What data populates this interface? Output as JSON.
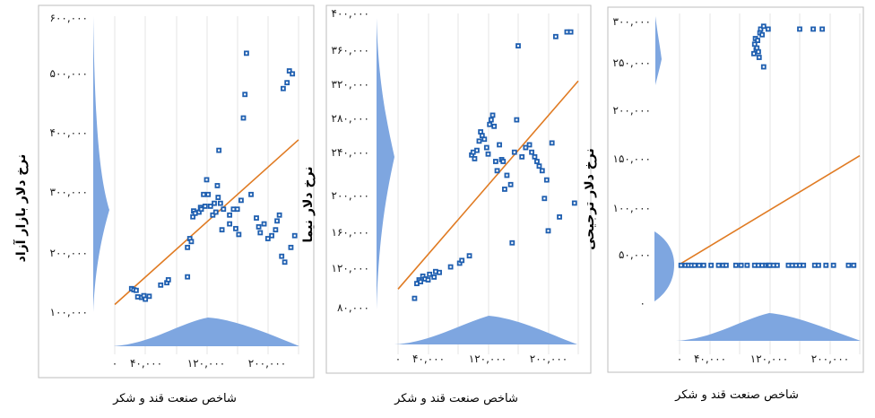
{
  "chart_data": [
    {
      "type": "scatter",
      "ylabel": "نرخ دلار بازار آزاد",
      "xlabel": "شاخص صنعت قند و شکر",
      "xlim": [
        0,
        240000
      ],
      "ylim": [
        100000,
        600000
      ],
      "x_ticks": [
        "۰",
        "۴۰,۰۰۰",
        "۱۲۰,۰۰۰",
        "۲۰۰,۰۰۰"
      ],
      "y_ticks": [
        "۱۰۰,۰۰۰",
        "۲۰۰,۰۰۰",
        "۳۰۰,۰۰۰",
        "۴۰۰,۰۰۰",
        "۵۰۰,۰۰۰",
        "۶۰۰,۰۰۰"
      ],
      "trend": [
        [
          0,
          113000
        ],
        [
          240000,
          393000
        ]
      ],
      "points": [
        [
          22000,
          140000
        ],
        [
          25000,
          138000
        ],
        [
          28000,
          137000
        ],
        [
          30000,
          126000
        ],
        [
          35000,
          125000
        ],
        [
          38000,
          128000
        ],
        [
          40000,
          122000
        ],
        [
          45000,
          127000
        ],
        [
          60000,
          146000
        ],
        [
          68000,
          150000
        ],
        [
          70000,
          155000
        ],
        [
          95000,
          160000
        ],
        [
          95000,
          210000
        ],
        [
          98000,
          225000
        ],
        [
          100000,
          220000
        ],
        [
          102000,
          262000
        ],
        [
          103000,
          272000
        ],
        [
          105000,
          268000
        ],
        [
          110000,
          270000
        ],
        [
          112000,
          278000
        ],
        [
          113000,
          275000
        ],
        [
          116000,
          300000
        ],
        [
          118000,
          280000
        ],
        [
          120000,
          325000
        ],
        [
          122000,
          300000
        ],
        [
          125000,
          280000
        ],
        [
          128000,
          265000
        ],
        [
          130000,
          285000
        ],
        [
          132000,
          270000
        ],
        [
          134000,
          315000
        ],
        [
          135000,
          295000
        ],
        [
          136000,
          375000
        ],
        [
          138000,
          285000
        ],
        [
          140000,
          240000
        ],
        [
          142000,
          275000
        ],
        [
          150000,
          250000
        ],
        [
          150000,
          265000
        ],
        [
          155000,
          275000
        ],
        [
          158000,
          242000
        ],
        [
          160000,
          275000
        ],
        [
          162000,
          232000
        ],
        [
          165000,
          290000
        ],
        [
          168000,
          430000
        ],
        [
          170000,
          470000
        ],
        [
          172000,
          540000
        ],
        [
          178000,
          300000
        ],
        [
          185000,
          260000
        ],
        [
          188000,
          245000
        ],
        [
          190000,
          235000
        ],
        [
          195000,
          250000
        ],
        [
          200000,
          225000
        ],
        [
          205000,
          230000
        ],
        [
          210000,
          240000
        ],
        [
          212000,
          255000
        ],
        [
          215000,
          265000
        ],
        [
          218000,
          195000
        ],
        [
          220000,
          480000
        ],
        [
          222000,
          185000
        ],
        [
          225000,
          490000
        ],
        [
          228000,
          510000
        ],
        [
          230000,
          210000
        ],
        [
          232000,
          505000
        ],
        [
          235000,
          230000
        ]
      ]
    },
    {
      "type": "scatter",
      "ylabel": "نرخ دلار نیما",
      "xlabel": "شاخص صنعت قند و شکر",
      "xlim": [
        0,
        240000
      ],
      "ylim": [
        80000,
        400000
      ],
      "x_ticks": [
        "۰",
        "۴۰,۰۰۰",
        "۱۲۰,۰۰۰",
        "۲۰۰,۰۰۰"
      ],
      "y_ticks": [
        "۸۰,۰۰۰",
        "۱۲۰,۰۰۰",
        "۱۶۰,۰۰۰",
        "۲۰۰,۰۰۰",
        "۲۴۰,۰۰۰",
        "۲۸۰,۰۰۰",
        "۳۲۰,۰۰۰",
        "۳۶۰,۰۰۰",
        "۴۰۰,۰۰۰"
      ],
      "trend": [
        [
          0,
          102000
        ],
        [
          240000,
          327000
        ]
      ],
      "points": [
        [
          22000,
          92000
        ],
        [
          25000,
          108000
        ],
        [
          28000,
          112000
        ],
        [
          30000,
          110000
        ],
        [
          33000,
          116000
        ],
        [
          36000,
          113000
        ],
        [
          40000,
          112000
        ],
        [
          42000,
          118000
        ],
        [
          48000,
          115000
        ],
        [
          50000,
          121000
        ],
        [
          55000,
          120000
        ],
        [
          70000,
          126000
        ],
        [
          82000,
          130000
        ],
        [
          85000,
          133000
        ],
        [
          95000,
          138000
        ],
        [
          98000,
          247000
        ],
        [
          100000,
          250000
        ],
        [
          102000,
          243000
        ],
        [
          105000,
          252000
        ],
        [
          108000,
          262000
        ],
        [
          110000,
          272000
        ],
        [
          112000,
          268000
        ],
        [
          115000,
          264000
        ],
        [
          118000,
          255000
        ],
        [
          120000,
          248000
        ],
        [
          122000,
          280000
        ],
        [
          124000,
          285000
        ],
        [
          126000,
          290000
        ],
        [
          128000,
          278000
        ],
        [
          130000,
          240000
        ],
        [
          132000,
          230000
        ],
        [
          135000,
          258000
        ],
        [
          138000,
          242000
        ],
        [
          140000,
          240000
        ],
        [
          142000,
          210000
        ],
        [
          145000,
          225000
        ],
        [
          150000,
          215000
        ],
        [
          152000,
          152000
        ],
        [
          155000,
          250000
        ],
        [
          158000,
          285000
        ],
        [
          160000,
          365000
        ],
        [
          165000,
          245000
        ],
        [
          170000,
          255000
        ],
        [
          175000,
          258000
        ],
        [
          178000,
          250000
        ],
        [
          182000,
          245000
        ],
        [
          185000,
          240000
        ],
        [
          188000,
          235000
        ],
        [
          192000,
          230000
        ],
        [
          195000,
          200000
        ],
        [
          198000,
          220000
        ],
        [
          200000,
          165000
        ],
        [
          205000,
          260000
        ],
        [
          210000,
          375000
        ],
        [
          215000,
          180000
        ],
        [
          225000,
          380000
        ],
        [
          230000,
          380000
        ],
        [
          235000,
          195000
        ]
      ]
    },
    {
      "type": "scatter",
      "ylabel": "نرخ دلار ترجیحی",
      "xlabel": "شاخص صنعت قند و شکر",
      "xlim": [
        0,
        240000
      ],
      "ylim": [
        0,
        300000
      ],
      "x_ticks": [
        "۰",
        "۴۰,۰۰۰",
        "۱۲۰,۰۰۰",
        "۲۰۰,۰۰۰"
      ],
      "y_ticks": [
        "۰",
        "۵۰,۰۰۰",
        "۱۰۰,۰۰۰",
        "۱۵۰,۰۰۰",
        "۲۰۰,۰۰۰",
        "۲۵۰,۰۰۰",
        "۳۰۰,۰۰۰"
      ],
      "trend": [
        [
          0,
          43000
        ],
        [
          240000,
          158000
        ]
      ],
      "points": [
        [
          2000,
          42000
        ],
        [
          8000,
          42000
        ],
        [
          12000,
          42000
        ],
        [
          16000,
          42000
        ],
        [
          20000,
          42000
        ],
        [
          26000,
          42000
        ],
        [
          32000,
          42000
        ],
        [
          42000,
          42000
        ],
        [
          52000,
          42000
        ],
        [
          58000,
          42000
        ],
        [
          62000,
          42000
        ],
        [
          75000,
          42000
        ],
        [
          82000,
          42000
        ],
        [
          90000,
          42000
        ],
        [
          100000,
          42000
        ],
        [
          105000,
          42000
        ],
        [
          110000,
          42000
        ],
        [
          115000,
          42000
        ],
        [
          118000,
          42000
        ],
        [
          120000,
          42000
        ],
        [
          125000,
          42000
        ],
        [
          130000,
          42000
        ],
        [
          145000,
          42000
        ],
        [
          150000,
          42000
        ],
        [
          155000,
          42000
        ],
        [
          160000,
          42000
        ],
        [
          165000,
          42000
        ],
        [
          180000,
          42000
        ],
        [
          185000,
          42000
        ],
        [
          195000,
          42000
        ],
        [
          205000,
          42000
        ],
        [
          225000,
          42000
        ],
        [
          232000,
          42000
        ],
        [
          99000,
          266000
        ],
        [
          100000,
          276000
        ],
        [
          101000,
          282000
        ],
        [
          102000,
          270000
        ],
        [
          103000,
          272000
        ],
        [
          104000,
          280000
        ],
        [
          105000,
          268000
        ],
        [
          106000,
          262000
        ],
        [
          107000,
          288000
        ],
        [
          108000,
          292000
        ],
        [
          110000,
          286000
        ],
        [
          112000,
          252000
        ],
        [
          112000,
          295000
        ],
        [
          118000,
          292000
        ],
        [
          160000,
          292000
        ],
        [
          178000,
          292000
        ],
        [
          190000,
          292000
        ]
      ]
    }
  ]
}
